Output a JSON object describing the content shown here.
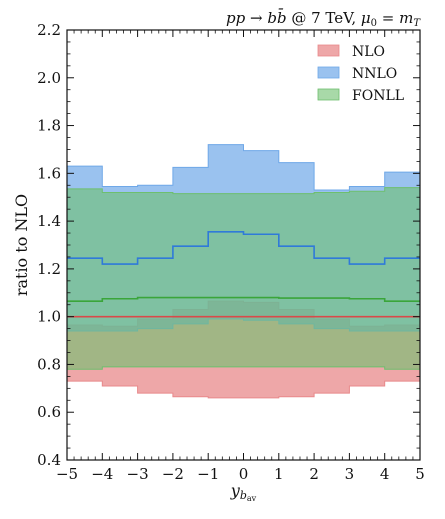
{
  "chart_data": {
    "type": "area",
    "title": "pp → bb̄ @ 7 TeV, μ₀ = m_T",
    "xlabel": "y_b_av",
    "ylabel": "ratio to NLO",
    "xlim": [
      -5,
      5
    ],
    "ylim": [
      0.4,
      2.2
    ],
    "x_ticks": [
      -5,
      -4,
      -3,
      -2,
      -1,
      0,
      1,
      2,
      3,
      4,
      5
    ],
    "x_tick_labels": [
      "−5",
      "−4",
      "−3",
      "−2",
      "−1",
      "0",
      "1",
      "2",
      "3",
      "4",
      "5"
    ],
    "y_ticks": [
      0.4,
      0.6,
      0.8,
      1.0,
      1.2,
      1.4,
      1.6,
      1.8,
      2.0,
      2.2
    ],
    "y_tick_labels": [
      "0.4",
      "0.6",
      "0.8",
      "1.0",
      "1.2",
      "1.4",
      "1.6",
      "1.8",
      "2.0",
      "2.2"
    ],
    "bin_edges": [
      -5,
      -4,
      -3,
      -2,
      -1,
      0,
      1,
      2,
      3,
      4,
      5
    ],
    "legend_position": "top-right",
    "grid": false,
    "series": [
      {
        "name": "NLO",
        "color": "#e8898b",
        "fill_opacity": 0.75,
        "central": [
          1.0,
          1.0,
          1.0,
          1.0,
          1.0,
          1.0,
          1.0,
          1.0,
          1.0,
          1.0
        ],
        "lower": [
          0.73,
          0.71,
          0.68,
          0.665,
          0.66,
          0.66,
          0.665,
          0.68,
          0.71,
          0.73
        ],
        "upper": [
          0.965,
          0.96,
          0.99,
          1.03,
          1.065,
          1.06,
          1.03,
          0.99,
          0.96,
          0.965
        ]
      },
      {
        "name": "NNLO",
        "color": "#6fa8e8",
        "fill_opacity": 0.7,
        "central": [
          1.245,
          1.22,
          1.245,
          1.295,
          1.355,
          1.345,
          1.295,
          1.245,
          1.22,
          1.245
        ],
        "lower": [
          0.94,
          0.94,
          0.95,
          0.97,
          0.99,
          0.985,
          0.97,
          0.95,
          0.94,
          0.94
        ],
        "upper": [
          1.63,
          1.545,
          1.55,
          1.625,
          1.72,
          1.695,
          1.645,
          1.53,
          1.545,
          1.605
        ]
      },
      {
        "name": "FONLL",
        "color": "#6ebf6e",
        "fill_opacity": 0.6,
        "central": [
          1.065,
          1.075,
          1.08,
          1.08,
          1.08,
          1.08,
          1.078,
          1.078,
          1.075,
          1.065
        ],
        "lower": [
          0.78,
          0.79,
          0.79,
          0.79,
          0.79,
          0.79,
          0.79,
          0.79,
          0.79,
          0.78
        ],
        "upper": [
          1.535,
          1.52,
          1.52,
          1.515,
          1.515,
          1.515,
          1.515,
          1.52,
          1.525,
          1.54
        ]
      }
    ]
  }
}
